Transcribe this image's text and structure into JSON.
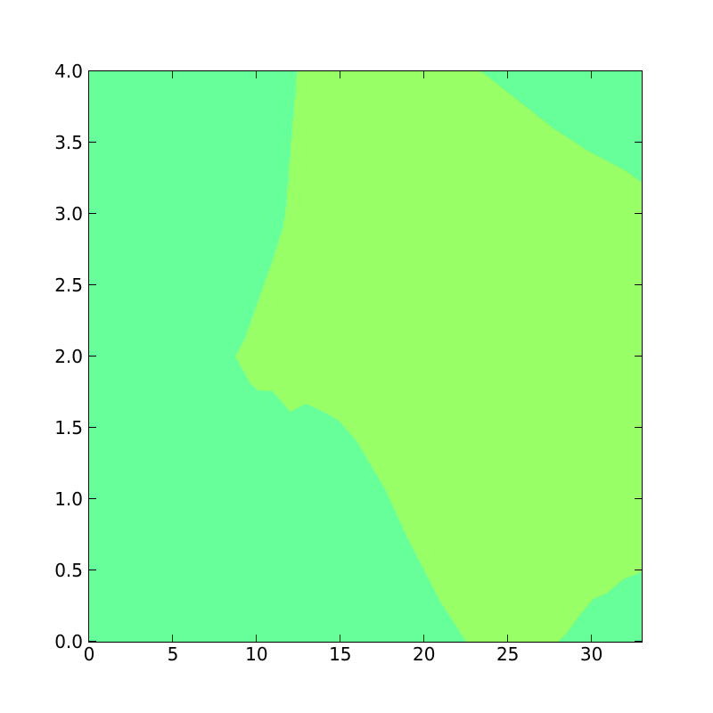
{
  "figure": {
    "background_color": "#ffffff",
    "title": ""
  },
  "chart_data": {
    "type": "heatmap",
    "subtype": "filled_contour",
    "title": "",
    "xlabel": "",
    "ylabel": "",
    "xlim": [
      0,
      33
    ],
    "ylim": [
      0,
      4
    ],
    "grid": false,
    "legend": null,
    "x_ticks": [
      0,
      5,
      10,
      15,
      20,
      25,
      30
    ],
    "x_tick_labels": [
      "0",
      "5",
      "10",
      "15",
      "20",
      "25",
      "30"
    ],
    "y_ticks": [
      0,
      0.5,
      1,
      1.5,
      2,
      2.5,
      3,
      3.5,
      4
    ],
    "y_tick_labels": [
      "0.0",
      "0.5",
      "1.0",
      "1.5",
      "2.0",
      "2.5",
      "3.0",
      "3.5",
      "4.0"
    ],
    "levels": {
      "background_color": "#66ff99",
      "background_level_name": "lower-contour-level",
      "region_color": "#99ff66",
      "region_level_name": "upper-contour-level",
      "region_polygon": [
        [
          12.4,
          4.0
        ],
        [
          12.0,
          3.44
        ],
        [
          11.75,
          3.06
        ],
        [
          11.55,
          2.9
        ],
        [
          10.9,
          2.66
        ],
        [
          10.4,
          2.5
        ],
        [
          9.3,
          2.13
        ],
        [
          8.7,
          2.0
        ],
        [
          9.6,
          1.81
        ],
        [
          10.1,
          1.76
        ],
        [
          10.9,
          1.76
        ],
        [
          12.0,
          1.61
        ],
        [
          12.9,
          1.67
        ],
        [
          14.0,
          1.61
        ],
        [
          14.9,
          1.55
        ],
        [
          16.0,
          1.4
        ],
        [
          17.7,
          1.06
        ],
        [
          18.9,
          0.75
        ],
        [
          20.9,
          0.29
        ],
        [
          22.5,
          0.0
        ],
        [
          28.0,
          0.0
        ],
        [
          28.5,
          0.06
        ],
        [
          29.3,
          0.19
        ],
        [
          30.1,
          0.3
        ],
        [
          30.9,
          0.34
        ],
        [
          31.9,
          0.44
        ],
        [
          33.0,
          0.49
        ],
        [
          33.0,
          3.22
        ],
        [
          31.9,
          3.31
        ],
        [
          29.8,
          3.44
        ],
        [
          27.7,
          3.6
        ],
        [
          25.0,
          3.85
        ],
        [
          23.4,
          4.0
        ]
      ]
    },
    "spine_color": "#000000",
    "tick_color": "#000000",
    "tick_direction": "in"
  }
}
